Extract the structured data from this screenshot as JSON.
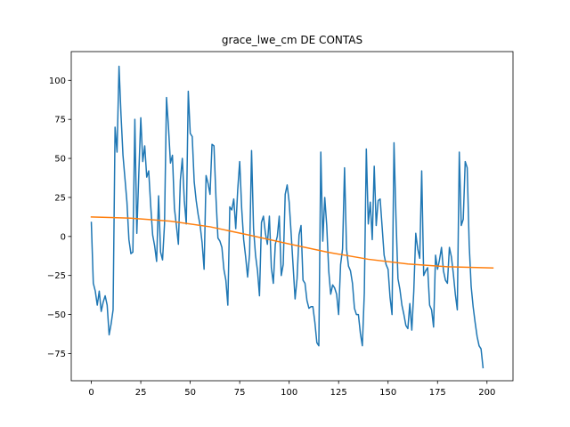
{
  "chart_data": {
    "type": "line",
    "title": "grace_lwe_cm DE CONTAS",
    "xlabel": "",
    "ylabel": "",
    "xlim": [
      -10.15,
      213.15
    ],
    "ylim": [
      -92.4,
      118.4
    ],
    "grid": false,
    "legend": "none",
    "x_ticks": [
      0,
      25,
      50,
      75,
      100,
      125,
      150,
      175,
      200
    ],
    "y_ticks": [
      -75,
      -50,
      -25,
      0,
      25,
      50,
      75,
      100
    ],
    "colors": {
      "series_observed": "#1f77b4",
      "series_trend": "#ff7f0e"
    },
    "series": [
      {
        "values": [
          9,
          -30,
          -35,
          -44,
          -35,
          -48,
          -42,
          -38,
          -44,
          -63,
          -56,
          -47,
          70,
          54,
          109,
          78,
          52,
          37,
          22,
          -2,
          -11,
          -10,
          75,
          2,
          40,
          76,
          48,
          58,
          38,
          42,
          20,
          1,
          -6,
          -16,
          26,
          -10,
          -15,
          8,
          89,
          70,
          47,
          52,
          18,
          7,
          -5,
          36,
          50,
          23,
          8,
          93,
          66,
          64,
          35,
          23,
          14,
          7,
          -4,
          -21,
          39,
          34,
          27,
          59,
          58,
          25,
          -1,
          -3,
          -7,
          -21,
          -28,
          -44,
          19,
          17,
          24,
          5,
          30,
          48,
          18,
          -2,
          -13,
          -26,
          -11,
          55,
          5,
          -12,
          -22,
          -38,
          9,
          13,
          2,
          -5,
          13,
          -20,
          -30,
          -5,
          0,
          13,
          -25,
          -18,
          27,
          33,
          22,
          2,
          -19,
          -40,
          -27,
          1,
          7,
          -28,
          -30,
          -41,
          -46,
          -45,
          -45,
          -55,
          -68,
          -70,
          54,
          -3,
          25,
          7,
          -22,
          -37,
          -31,
          -33,
          -37,
          -50,
          -18,
          -8,
          44,
          -8,
          -19,
          -22,
          -30,
          -46,
          -50,
          -50,
          -62,
          -70,
          -36,
          56,
          8,
          22,
          -2,
          45,
          7,
          23,
          24,
          6,
          -12,
          -18,
          -21,
          -39,
          -50,
          60,
          12,
          -27,
          -34,
          -44,
          -50,
          -57,
          -59,
          -43,
          -60,
          -35,
          2,
          -8,
          -14,
          42,
          -25,
          -22,
          -20,
          -44,
          -47,
          -58,
          -12,
          -21,
          -15,
          -7,
          -22,
          -28,
          -30,
          -7,
          -13,
          -24,
          -37,
          -47,
          54,
          7,
          11,
          48,
          44,
          -5,
          -32,
          -45,
          -55,
          -64,
          -70,
          -72,
          -84
        ],
        "x_start": 0,
        "x_step": 1
      },
      {
        "x": [
          0,
          20,
          40,
          60,
          80,
          100,
          120,
          140,
          160,
          180,
          203
        ],
        "values": [
          12.5,
          11.7,
          9.8,
          6.2,
          0.8,
          -4.8,
          -10.2,
          -14.6,
          -17.6,
          -19.4,
          -20.2
        ]
      }
    ]
  }
}
